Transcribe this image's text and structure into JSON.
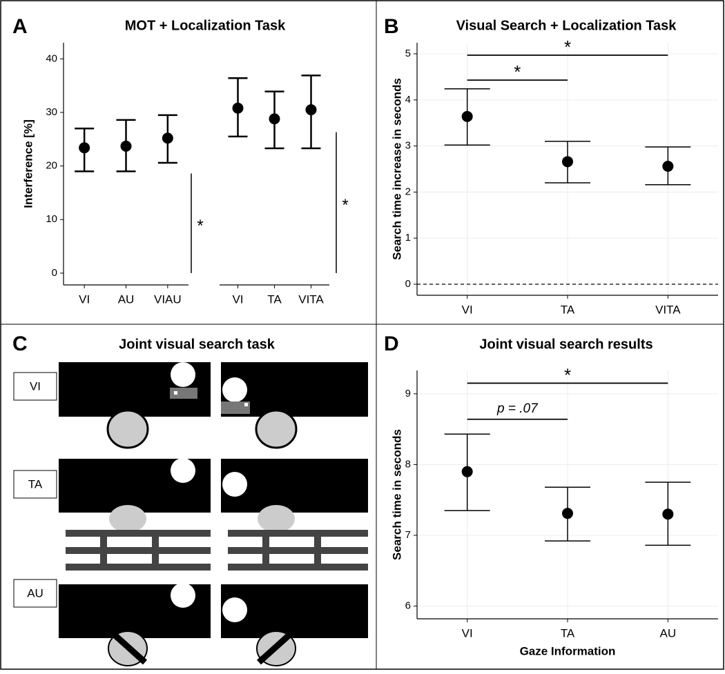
{
  "chart_data": [
    {
      "type": "errorbar",
      "panel": "A",
      "title": "MOT + Localization Task",
      "ylabel": "Interference [%]",
      "ylim": [
        -2.2,
        43
      ],
      "yticks": [
        0,
        10,
        20,
        30,
        40
      ],
      "grid": false,
      "groups": [
        {
          "categories": [
            "VI",
            "AU",
            "VIAU"
          ],
          "values": [
            23.4,
            23.7,
            25.2
          ],
          "lower": [
            19.0,
            19.0,
            20.6
          ],
          "upper": [
            27.0,
            28.6,
            29.5
          ]
        },
        {
          "categories": [
            "VI",
            "TA",
            "VITA"
          ],
          "values": [
            30.8,
            28.8,
            30.5
          ],
          "lower": [
            25.5,
            23.3,
            23.3
          ],
          "upper": [
            36.4,
            33.9,
            36.9
          ]
        }
      ],
      "annotations": [
        {
          "text": "*",
          "y_from": 0,
          "y_to": 18.6
        },
        {
          "text": "*",
          "y_from": 0,
          "y_to": 26.3
        }
      ]
    },
    {
      "type": "errorbar",
      "panel": "B",
      "title": "Visual Search + Localization Task",
      "ylabel": "Search time increase in seconds",
      "ylim": [
        -0.24,
        5.24
      ],
      "yticks": [
        0,
        1,
        2,
        3,
        4,
        5
      ],
      "grid": true,
      "hline": 0,
      "groups": [
        {
          "categories": [
            "VI",
            "TA",
            "VITA"
          ],
          "values": [
            3.64,
            2.66,
            2.56
          ],
          "lower": [
            3.02,
            2.2,
            2.16
          ],
          "upper": [
            4.24,
            3.1,
            2.98
          ]
        }
      ],
      "annotations": [
        {
          "text": "*",
          "y": 4.43,
          "span": [
            "VI",
            "TA"
          ]
        },
        {
          "text": "*",
          "y": 4.97,
          "span": [
            "VI",
            "VITA"
          ]
        }
      ]
    },
    {
      "type": "errorbar",
      "panel": "D",
      "title": "Joint visual search results",
      "ylabel": "Search time in seconds",
      "xlabel": "Gaze Information",
      "ylim": [
        5.82,
        9.33
      ],
      "yticks": [
        6,
        7,
        8,
        9
      ],
      "grid": true,
      "groups": [
        {
          "categories": [
            "VI",
            "TA",
            "AU"
          ],
          "values": [
            7.9,
            7.31,
            7.3
          ],
          "lower": [
            7.35,
            6.92,
            6.86
          ],
          "upper": [
            8.43,
            7.68,
            7.75
          ]
        }
      ],
      "annotations": [
        {
          "text": "p = .07",
          "y": 8.64,
          "span": [
            "VI",
            "TA"
          ]
        },
        {
          "text": "*",
          "y": 9.15,
          "span": [
            "VI",
            "AU"
          ]
        }
      ]
    }
  ],
  "panel_c": {
    "panel": "C",
    "title": "Joint visual search task",
    "conditions": [
      "VI",
      "TA",
      "AU"
    ]
  }
}
